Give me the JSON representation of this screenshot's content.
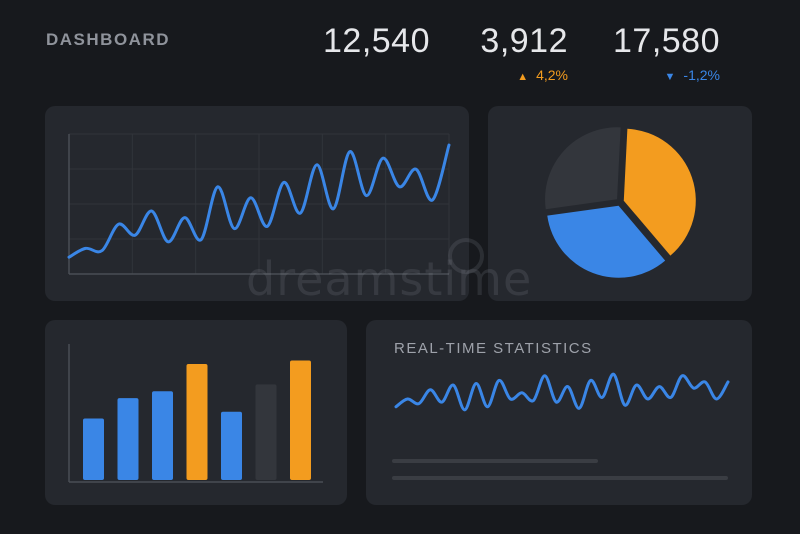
{
  "header": {
    "title": "DASHBOARD",
    "stats": [
      {
        "value": "12,540"
      },
      {
        "value": "3,912",
        "delta": "4,2%",
        "direction": "up"
      },
      {
        "value": "17,580",
        "delta": "-1,2%",
        "direction": "down"
      }
    ]
  },
  "colors": {
    "blue": "#3a86e6",
    "orange": "#f39c1f",
    "gray": "#33363c",
    "panel": "#25282e",
    "background": "#17191d"
  },
  "realtime": {
    "title": "REAL-TIME STATISTICS"
  },
  "watermark": {
    "text": "dreamstime"
  },
  "chart_data": [
    {
      "type": "line",
      "x": [
        0,
        1,
        2,
        3,
        4,
        5,
        6,
        7,
        8,
        9,
        10,
        11,
        12,
        13,
        14,
        15,
        16,
        17,
        18,
        19,
        20,
        21,
        22,
        23
      ],
      "values": [
        8,
        16,
        14,
        38,
        28,
        50,
        22,
        44,
        24,
        72,
        34,
        62,
        36,
        76,
        48,
        92,
        52,
        104,
        64,
        98,
        72,
        88,
        60,
        110
      ],
      "grid": true
    },
    {
      "type": "pie",
      "values": [
        38,
        34,
        28
      ],
      "colors": [
        "#f39c1f",
        "#3a86e6",
        "#33363c"
      ]
    },
    {
      "type": "bar",
      "values": [
        36,
        48,
        52,
        68,
        40,
        56,
        70
      ],
      "colors": [
        "#3a86e6",
        "#3a86e6",
        "#3a86e6",
        "#f39c1f",
        "#3a86e6",
        "#33363c",
        "#f39c1f"
      ]
    },
    {
      "type": "line",
      "title": "REAL-TIME STATISTICS",
      "x": [
        0,
        1,
        2,
        3,
        4,
        5,
        6,
        7,
        8,
        9,
        10,
        11,
        12,
        13,
        14,
        15,
        16,
        17,
        18,
        19,
        20,
        21,
        22,
        23,
        24,
        25,
        26,
        27,
        28,
        29
      ],
      "values": [
        30,
        40,
        34,
        52,
        36,
        58,
        26,
        60,
        30,
        64,
        40,
        48,
        38,
        70,
        36,
        56,
        28,
        64,
        42,
        72,
        32,
        58,
        40,
        56,
        42,
        70,
        54,
        62,
        40,
        62
      ]
    }
  ]
}
